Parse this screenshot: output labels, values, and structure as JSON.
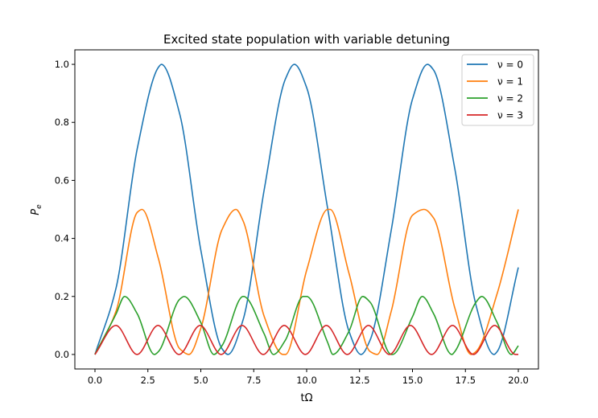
{
  "chart_data": {
    "type": "line",
    "title": "Excited state population with variable detuning",
    "xlabel": "tΩ",
    "ylabel": "P",
    "ylabel_sub": "e",
    "xlim": [
      -0.95,
      20.95
    ],
    "ylim": [
      -0.05,
      1.05
    ],
    "xticks": [
      0.0,
      2.5,
      5.0,
      7.5,
      10.0,
      12.5,
      15.0,
      17.5,
      20.0
    ],
    "xtick_labels": [
      "0.0",
      "2.5",
      "5.0",
      "7.5",
      "10.0",
      "12.5",
      "15.0",
      "17.5",
      "20.0"
    ],
    "yticks": [
      0.0,
      0.2,
      0.4,
      0.6,
      0.8,
      1.0
    ],
    "ytick_labels": [
      "0.0",
      "0.2",
      "0.4",
      "0.6",
      "0.8",
      "1.0"
    ],
    "grid": false,
    "legend_position": "top-right",
    "series": [
      {
        "name": "ν = 0",
        "nu": 0,
        "color": "#1f77b4",
        "x": [
          0,
          1,
          2,
          3,
          3.14,
          4,
          5,
          6,
          6.28,
          7,
          8,
          9,
          9.42,
          10,
          11,
          12,
          12.57,
          13,
          14,
          15,
          15.71,
          16,
          17,
          18,
          18.85,
          19,
          20
        ],
        "y": [
          0,
          0.23,
          0.71,
          0.99,
          1.0,
          0.83,
          0.36,
          0.02,
          0.0,
          0.12,
          0.57,
          0.95,
          1.0,
          0.92,
          0.5,
          0.08,
          0.0,
          0.05,
          0.43,
          0.88,
          1.0,
          0.98,
          0.64,
          0.17,
          0.0,
          0.01,
          0.3
        ]
      },
      {
        "name": "ν = 1",
        "nu": 1,
        "color": "#ff7f0e",
        "x": [
          0,
          1,
          2,
          2.22,
          3,
          4,
          4.44,
          5,
          6,
          6.66,
          7,
          8,
          8.89,
          9,
          10,
          11,
          11.11,
          12,
          13,
          13.33,
          14,
          15,
          15.55,
          16,
          17,
          17.77,
          18,
          19,
          20
        ],
        "y": [
          0,
          0.15,
          0.49,
          0.5,
          0.33,
          0.02,
          0.0,
          0.09,
          0.43,
          0.5,
          0.46,
          0.13,
          0.0,
          0.0,
          0.29,
          0.5,
          0.5,
          0.28,
          0.01,
          0.0,
          0.15,
          0.48,
          0.5,
          0.47,
          0.16,
          0.0,
          0.01,
          0.21,
          0.5
        ]
      },
      {
        "name": "ν = 2",
        "nu": 2,
        "color": "#2ca02c",
        "x": [
          0,
          1,
          1.4,
          2,
          2.81,
          3,
          4,
          4.21,
          5,
          5.62,
          6,
          7,
          7.02,
          8,
          8.43,
          9,
          9.84,
          10,
          11,
          11.24,
          12,
          12.65,
          13,
          14,
          14.05,
          15,
          15.46,
          16,
          16.86,
          17,
          18,
          18.27,
          19,
          19.67,
          20
        ],
        "y": [
          0,
          0.14,
          0.2,
          0.14,
          0.0,
          0.01,
          0.19,
          0.2,
          0.11,
          0.0,
          0.03,
          0.2,
          0.2,
          0.07,
          0.0,
          0.05,
          0.2,
          0.2,
          0.04,
          0.0,
          0.08,
          0.2,
          0.18,
          0.0,
          0.0,
          0.13,
          0.2,
          0.14,
          0.0,
          0.01,
          0.18,
          0.2,
          0.11,
          0.0,
          0.03
        ]
      },
      {
        "name": "ν = 3",
        "nu": 3,
        "color": "#d62728",
        "x": [
          0,
          0.99,
          1.99,
          2.98,
          3.97,
          4.97,
          5.96,
          6.95,
          7.95,
          8.94,
          9.94,
          10.93,
          11.92,
          12.92,
          13.91,
          14.9,
          15.9,
          16.89,
          17.88,
          18.88,
          19.87,
          20
        ],
        "y": [
          0,
          0.1,
          0.0,
          0.1,
          0.0,
          0.1,
          0.0,
          0.1,
          0.0,
          0.1,
          0.0,
          0.1,
          0.0,
          0.1,
          0.0,
          0.1,
          0.0,
          0.1,
          0.0,
          0.1,
          0.0,
          0.0
        ]
      }
    ]
  }
}
